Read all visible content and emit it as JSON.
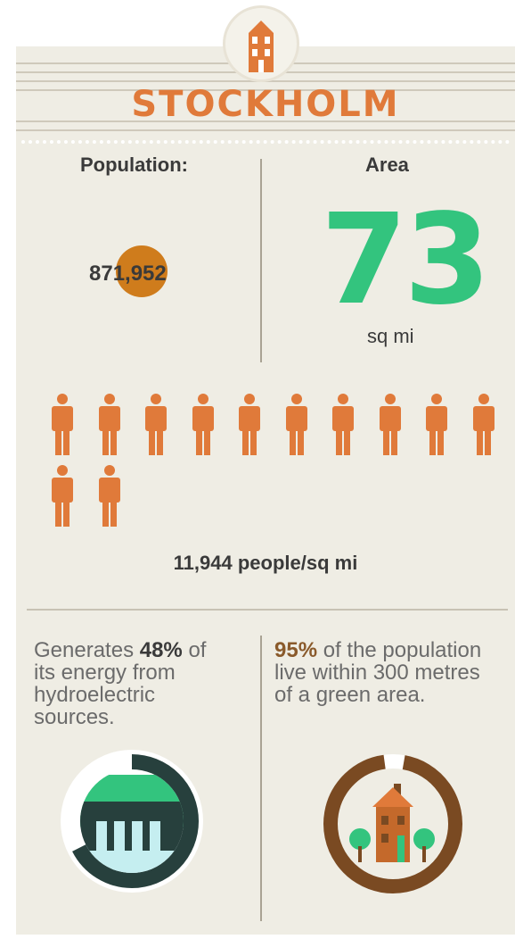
{
  "header": {
    "title": "STOCKHOLM",
    "icon": "building-icon"
  },
  "stats": {
    "population_label": "Population:",
    "population_value": "871,952",
    "area_label": "Area",
    "area_value": "73",
    "area_unit": "sq mi",
    "person_icons_count": 12,
    "density_text": "11,944 people/sq mi"
  },
  "energy": {
    "percent": "48%",
    "prefix": "Generates ",
    "suffix_line1": " of",
    "line2": "its energy from",
    "line3": "hydroelectric",
    "line4": "sources.",
    "icon": "hydroelectric-dam-icon"
  },
  "green": {
    "percent": "95%",
    "suffix_line1": " of the population",
    "line2": "live within 300 metres",
    "line3": "of a green area.",
    "icon": "house-with-trees-icon"
  },
  "colors": {
    "orange": "#e07a3a",
    "green": "#33c47e",
    "brown": "#7a4a22",
    "dark_teal": "#27403d",
    "light_blue": "#c5eef0",
    "background": "#efede4"
  }
}
